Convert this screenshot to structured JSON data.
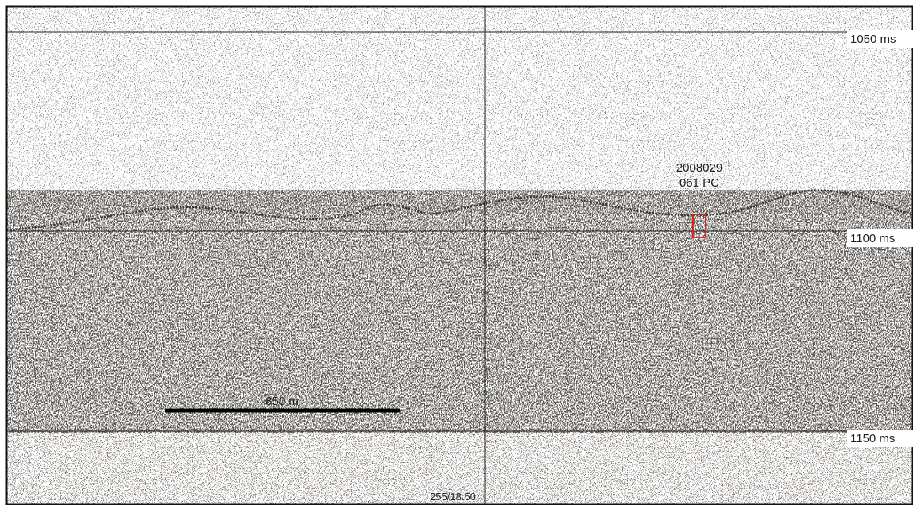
{
  "time_labels": [
    "1050 ms",
    "1100 ms",
    "1150 ms"
  ],
  "core_label": [
    "2008029",
    "061 PC"
  ],
  "scale_bar": "850 m",
  "timestamp": "255/18:50"
}
